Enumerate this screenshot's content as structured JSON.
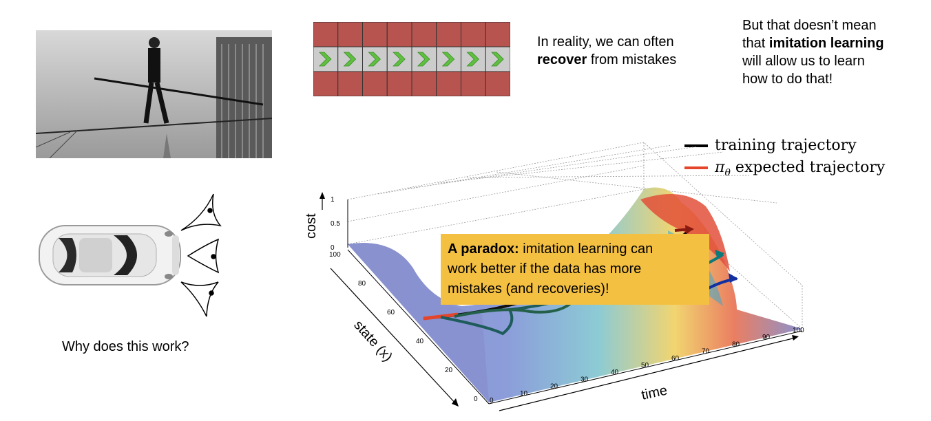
{
  "slide": {
    "recover_text": {
      "line1": "In reality, we can often",
      "bold": "recover",
      "rest": " from mistakes"
    },
    "imitation_text": {
      "line1": "But that doesn’t mean",
      "pre": "that ",
      "bold": "imitation learning",
      "line3": "will allow us to learn",
      "line4": "how to do that!"
    },
    "car_caption": "Why does this work?",
    "legend": {
      "training": "training trajectory",
      "expected_symbol": "π",
      "expected_sub": "θ",
      "expected": " expected trajectory"
    },
    "callout": {
      "bold": "A paradox:",
      "line1": " imitation learning can",
      "line2": "work better if the data has more",
      "line3": "mistakes (and recoveries)!"
    },
    "grid": {
      "rows": 3,
      "cols": 8
    },
    "colors": {
      "red_cell": "#b85450",
      "grey_cell": "#cccccc",
      "chevron": "#5fbf3f",
      "callout_bg": "#f4c042"
    }
  },
  "chart_data": {
    "type": "surface",
    "zlabel": "cost",
    "ylabel": "state (x)",
    "xlabel": "time",
    "z_ticks": [
      "0",
      "0.5",
      "1"
    ],
    "y_ticks": [
      "0",
      "20",
      "40",
      "60",
      "80",
      "100"
    ],
    "x_ticks": [
      "0",
      "10",
      "20",
      "30",
      "40",
      "50",
      "60",
      "70",
      "80",
      "90",
      "100"
    ],
    "zlim": [
      0,
      1
    ],
    "ylim": [
      0,
      100
    ],
    "xlim": [
      0,
      100
    ]
  }
}
